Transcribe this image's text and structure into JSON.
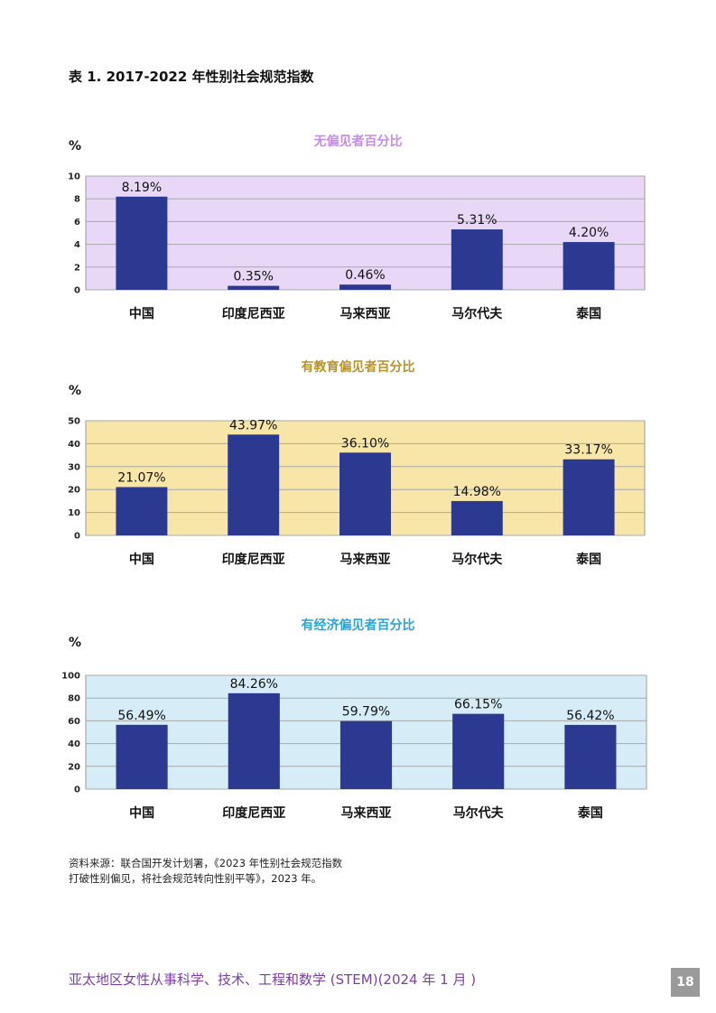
{
  "doc_title": "表 1. 2017-2022 年性别社会规范指数",
  "chart_data": [
    {
      "type": "bar",
      "title": "无偏见者百分比",
      "ylabel": "%",
      "categories": [
        "中国",
        "印度尼西亚",
        "马来西亚",
        "马尔代夫",
        "泰国"
      ],
      "values": [
        8.19,
        0.35,
        0.46,
        5.31,
        4.2
      ],
      "data_labels": [
        "8.19%",
        "0.35%",
        "0.46%",
        "5.31%",
        "4.20%"
      ],
      "ylim": [
        0,
        10
      ],
      "yticks": [
        "0",
        "2",
        "4",
        "6",
        "8",
        "10"
      ],
      "grid": true,
      "bar_color": "#2b3990",
      "background_color": "#e8d7f7",
      "title_color": "#c48be6"
    },
    {
      "type": "bar",
      "title": "有教育偏见者百分比",
      "ylabel": "%",
      "categories": [
        "中国",
        "印度尼西亚",
        "马来西亚",
        "马尔代夫",
        "泰国"
      ],
      "values": [
        21.07,
        43.97,
        36.1,
        14.98,
        33.17
      ],
      "data_labels": [
        "21.07%",
        "43.97%",
        "36.10%",
        "14.98%",
        "33.17%"
      ],
      "ylim": [
        0,
        50
      ],
      "yticks": [
        "0",
        "10",
        "20",
        "30",
        "40",
        "50"
      ],
      "grid": true,
      "bar_color": "#2b3990",
      "background_color": "#f8e6a8",
      "title_color": "#b8922a"
    },
    {
      "type": "bar",
      "title": "有经济偏见者百分比",
      "ylabel": "%",
      "categories": [
        "中国",
        "印度尼西亚",
        "马来西亚",
        "马尔代夫",
        "泰国"
      ],
      "values": [
        56.49,
        84.26,
        59.79,
        66.15,
        56.42
      ],
      "data_labels": [
        "56.49%",
        "84.26%",
        "59.79%",
        "66.15%",
        "56.42%"
      ],
      "ylim": [
        0,
        100
      ],
      "yticks": [
        "0",
        "20",
        "40",
        "60",
        "80",
        "100"
      ],
      "grid": true,
      "bar_color": "#2b3990",
      "background_color": "#d6edf8",
      "title_color": "#2aa3d8"
    }
  ],
  "source": {
    "line1": "资料来源：联合国开发计划署，《2023 年性别社会规范指数",
    "line2": "打破性别偏见，将社会规范转向性别平等》，2023 年。"
  },
  "footer": {
    "text": "亚太地区女性从事科学、技术、工程和数学 (STEM)(2024 年 1 月 )",
    "page_number": "18"
  }
}
